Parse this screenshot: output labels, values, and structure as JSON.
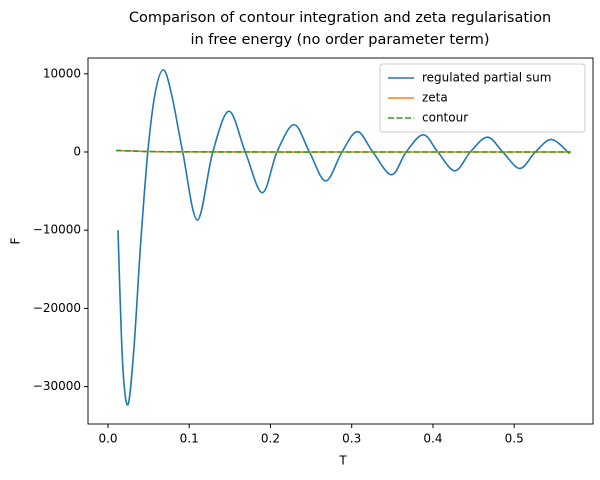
{
  "chart_data": {
    "type": "line",
    "title": [
      "Comparison of contour integration and zeta regularisation",
      "in free energy (no order parameter term)"
    ],
    "xlabel": "T",
    "ylabel": "F",
    "xlim": [
      -0.0246,
      0.597
    ],
    "ylim": [
      -34780,
      12020
    ],
    "xticks": [
      {
        "value": 0,
        "label": "0.0"
      },
      0.1,
      0.2,
      0.3,
      0.4,
      0.5
    ],
    "yticks": [
      {
        "value": -30000,
        "label": "−30000"
      },
      {
        "value": -20000,
        "label": "−20000"
      },
      {
        "value": -10000,
        "label": "−10000"
      },
      0,
      10000
    ],
    "legend": "upper right",
    "series": [
      {
        "name": "regulated partial sum",
        "color": "#1f77b4",
        "dash": false,
        "x": [
          0.0123,
          0.018,
          0.0246,
          0.032,
          0.04,
          0.049,
          0.058,
          0.068,
          0.078,
          0.092,
          0.11,
          0.129,
          0.149,
          0.169,
          0.19,
          0.208,
          0.229,
          0.248,
          0.268,
          0.288,
          0.307,
          0.326,
          0.349,
          0.367,
          0.388,
          0.406,
          0.427,
          0.446,
          0.467,
          0.486,
          0.507,
          0.526,
          0.546,
          0.568
        ],
        "values": [
          -10000,
          -27000,
          -32300,
          -25000,
          -12000,
          0,
          7500,
          10500,
          7500,
          0,
          -8700,
          0,
          5200,
          0,
          -5200,
          0,
          3500,
          0,
          -3700,
          0,
          2600,
          0,
          -2900,
          0,
          2200,
          0,
          -2400,
          0,
          1900,
          0,
          -2100,
          0,
          1600,
          -200
        ]
      },
      {
        "name": "zeta",
        "color": "#ff7f0e",
        "dash": false,
        "x": [
          0.01,
          0.05,
          0.1,
          0.2,
          0.3,
          0.4,
          0.5,
          0.57
        ],
        "values": [
          200,
          60,
          20,
          0,
          0,
          0,
          0,
          0
        ]
      },
      {
        "name": "contour",
        "color": "#2ca02c",
        "dash": true,
        "x": [
          0.01,
          0.05,
          0.1,
          0.2,
          0.3,
          0.4,
          0.5,
          0.57
        ],
        "values": [
          200,
          60,
          20,
          0,
          0,
          0,
          0,
          0
        ]
      }
    ]
  }
}
